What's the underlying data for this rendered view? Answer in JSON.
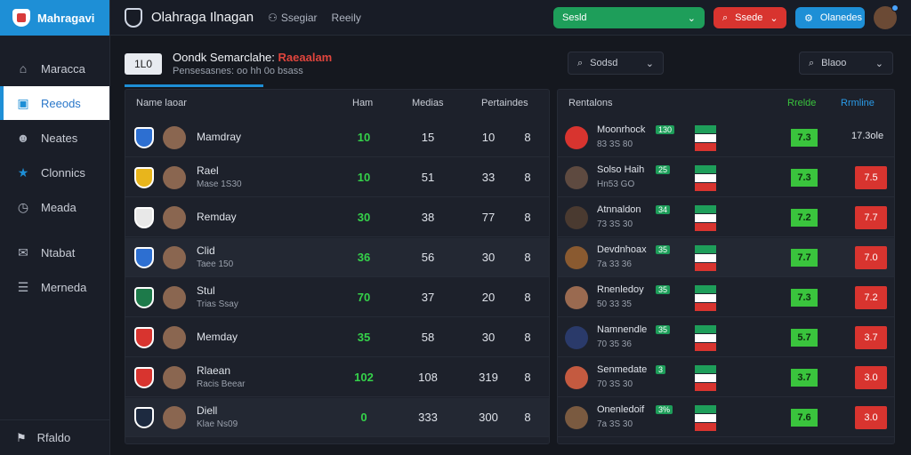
{
  "brand": {
    "name": "Mahragavi"
  },
  "nav": [
    {
      "label": "Maracca",
      "icon": "home-icon"
    },
    {
      "label": "Reeods",
      "icon": "records-icon",
      "active": true
    },
    {
      "label": "Neates",
      "icon": "user-icon"
    },
    {
      "label": "Clonnics",
      "icon": "star-icon"
    },
    {
      "label": "Meada",
      "icon": "clock-icon"
    },
    {
      "label": "Ntabat",
      "icon": "chat-icon"
    },
    {
      "label": "Merneda",
      "icon": "list-icon"
    }
  ],
  "sidebar_footer": {
    "label": "Rfaldo",
    "icon": "flag-icon"
  },
  "topbar": {
    "title": "Olahraga Ilnagan",
    "link1": "Ssegiar",
    "link2": "Reeily",
    "green_pill": "Sesld",
    "red_pill": "Ssede",
    "blue_pill": "Olanedes"
  },
  "header": {
    "badge": "1L0",
    "title": "Oondk Semarclahe:",
    "title_highlight": "Raeaalam",
    "subtitle": "Pensesasnes: oo hh 0o bsass"
  },
  "left_filter": {
    "label": "Sodsd"
  },
  "right_filter": {
    "label": "Blaoo"
  },
  "left_table": {
    "headers": [
      "Name laoar",
      "Ham",
      "Medias",
      "Pertaindes"
    ],
    "rows": [
      {
        "name": "Mamdray",
        "sub": "",
        "a": "10",
        "b": "15",
        "c": "10",
        "d": "8",
        "crest": "#2d6fd1"
      },
      {
        "name": "Rael",
        "sub": "Mase 1S30",
        "a": "10",
        "b": "51",
        "c": "33",
        "d": "8",
        "crest": "#e8b51c"
      },
      {
        "name": "Remday",
        "sub": "",
        "a": "30",
        "b": "38",
        "c": "77",
        "d": "8",
        "crest": "#e8e8e8"
      },
      {
        "name": "Clid",
        "sub": "Taee 150",
        "a": "36",
        "b": "56",
        "c": "30",
        "d": "8",
        "crest": "#2d6fd1"
      },
      {
        "name": "Stul",
        "sub": "Trias Ssay",
        "a": "70",
        "b": "37",
        "c": "20",
        "d": "8",
        "crest": "#1d7a4a"
      },
      {
        "name": "Memday",
        "sub": "",
        "a": "35",
        "b": "58",
        "c": "30",
        "d": "8",
        "crest": "#d8342f"
      },
      {
        "name": "Rlaean",
        "sub": "Racis Beear",
        "a": "102",
        "b": "108",
        "c": "319",
        "d": "8",
        "crest": "#d8342f"
      },
      {
        "name": "Diell",
        "sub": "Klae Ns09",
        "a": "0",
        "b": "333",
        "c": "300",
        "d": "8",
        "crest": "#1d2a40"
      }
    ]
  },
  "right_table": {
    "headers": [
      "Rentalons",
      "Rrelde",
      "Rrmline"
    ],
    "rows": [
      {
        "name": "Moonrhock",
        "tag": "130",
        "sub": "83 3S 80",
        "odds": "7.3",
        "val": "17.3ole",
        "red": false
      },
      {
        "name": "Solso Haih",
        "tag": "25",
        "sub": "Hn53 GO",
        "odds": "7.3",
        "val": "7.5",
        "red": true
      },
      {
        "name": "Atnnaldon",
        "tag": "34",
        "sub": "73 3S 30",
        "odds": "7.2",
        "val": "7.7",
        "red": true
      },
      {
        "name": "Devdnhoax",
        "tag": "35",
        "sub": "7a 33 36",
        "odds": "7.7",
        "val": "7.0",
        "red": true
      },
      {
        "name": "Rnenledoy",
        "tag": "35",
        "sub": "50 33 35",
        "odds": "7.3",
        "val": "7.2",
        "red": true
      },
      {
        "name": "Namnendle",
        "tag": "35",
        "sub": "70 35 36",
        "odds": "5.7",
        "val": "3.7",
        "red": true
      },
      {
        "name": "Senmedate",
        "tag": "3",
        "sub": "70 3S 30",
        "odds": "3.7",
        "val": "3.0",
        "red": true
      },
      {
        "name": "Onenledoif",
        "tag": "3%",
        "sub": "7a 3S 30",
        "odds": "7.6",
        "val": "3.0",
        "red": true
      }
    ]
  }
}
